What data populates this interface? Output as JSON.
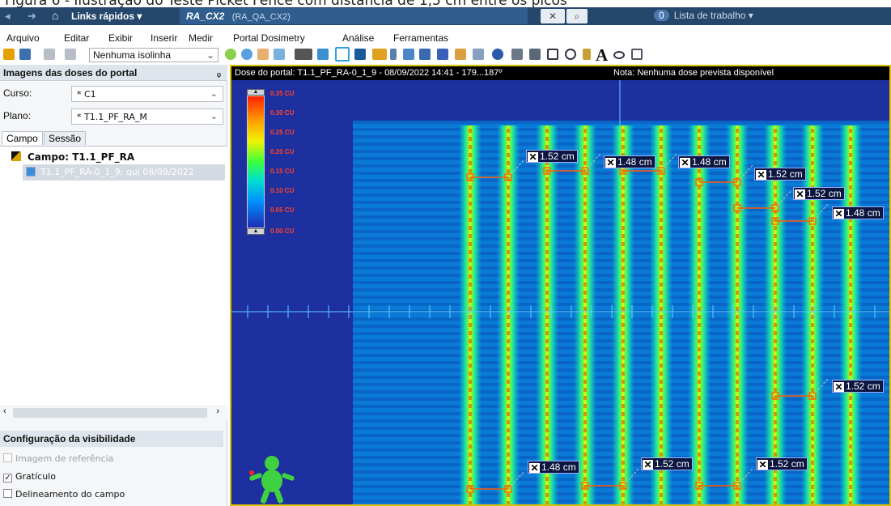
{
  "caption": "Figura 6 - Ilustração do Teste Picket Fence com distância de 1,5 cm entre os picos",
  "topbar": {
    "links_label": "Links rápidos ▾",
    "tab_title": "RA_CX2",
    "tab_subtitle": "(RA_QA_CX2)",
    "worklist_count": "0",
    "worklist_label": "Lista de trabalho ▾"
  },
  "menu": [
    "Arquivo",
    "Editar",
    "Exibir",
    "Inserir",
    "Medir",
    "Portal Dosimetry",
    "Análise",
    "Ferramentas"
  ],
  "toolbar": {
    "isoline_value": "Nenhuma isolinha",
    "text_tool": "A"
  },
  "left_panel": {
    "title": "Imagens das doses do portal",
    "course_label": "Curso:",
    "course_value": "* C1",
    "plan_label": "Plano:",
    "plan_value": "* T1.1_PF_RA_M",
    "tabs": [
      "Campo",
      "Sessão"
    ],
    "tree_field": "Campo: T1.1_PF_RA",
    "tree_image": "T1.1_PF_RA-0_1_9: qui 08/09/2022",
    "vis_title": "Configuração da visibilidade",
    "vis_items": [
      {
        "label": "Imagem de referência",
        "checked": false,
        "enabled": false
      },
      {
        "label": "Gratículo",
        "checked": true,
        "enabled": true
      },
      {
        "label": "Delineamento do campo",
        "checked": false,
        "enabled": true
      }
    ]
  },
  "viewer": {
    "title": "Dose do portal: T1.1_PF_RA-0_1_9 - 08/09/2022 14:41 - 179...187º",
    "note": "Nota: Nenhuma dose prevista disponível",
    "legend_ticks": [
      "0.35 CU",
      "0.30 CU",
      "0.25 CU",
      "0.20 CU",
      "0.15 CU",
      "0.10 CU",
      "0.05 CU",
      "0.00 CU"
    ],
    "measurements": [
      {
        "text": "1.52 cm"
      },
      {
        "text": "1.48 cm"
      },
      {
        "text": "1.48 cm"
      },
      {
        "text": "1.52 cm"
      },
      {
        "text": "1.52 cm"
      },
      {
        "text": "1.48 cm"
      },
      {
        "text": "1.52 cm"
      },
      {
        "text": "1.48 cm"
      },
      {
        "text": "1.52 cm"
      },
      {
        "text": "1.52 cm"
      }
    ]
  },
  "colors": {
    "background_blue": "#1a2a9a",
    "stripe_green": "#3cff3c",
    "stripe_yellow": "#f4f400",
    "marker_orange": "#ff6a00",
    "frame_yellow": "#e0c000"
  }
}
